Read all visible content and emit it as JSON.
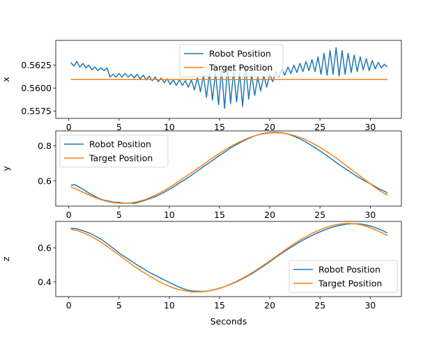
{
  "chart_data": [
    {
      "type": "line",
      "title": "",
      "xlabel": "",
      "ylabel": "x",
      "xlim": [
        -1.3,
        33.1
      ],
      "ylim": [
        0.5567,
        0.5652
      ],
      "xticks": [
        0,
        5,
        10,
        15,
        20,
        25,
        30
      ],
      "yticks": [
        0.5575,
        0.56,
        0.5625
      ],
      "ytick_labels": [
        "0.5575",
        "0.5600",
        "0.5625"
      ],
      "legend_position": "upper-center",
      "series": [
        {
          "name": "Robot Position",
          "color": "#1f77b4",
          "x": [
            0.2,
            0.5,
            0.8,
            1.1,
            1.4,
            1.7,
            2.0,
            2.3,
            2.6,
            2.9,
            3.2,
            3.5,
            3.8,
            4.1,
            4.4,
            4.7,
            5.0,
            5.3,
            5.6,
            5.9,
            6.2,
            6.5,
            6.8,
            7.1,
            7.4,
            7.7,
            8.0,
            8.3,
            8.6,
            8.9,
            9.2,
            9.5,
            9.8,
            10.1,
            10.4,
            10.7,
            11.0,
            11.3,
            11.6,
            11.9,
            12.2,
            12.5,
            12.8,
            13.1,
            13.4,
            13.7,
            14.0,
            14.3,
            14.6,
            14.9,
            15.2,
            15.5,
            15.8,
            16.1,
            16.4,
            16.7,
            17.0,
            17.3,
            17.6,
            17.9,
            18.2,
            18.5,
            18.8,
            19.1,
            19.4,
            19.7,
            20.0,
            20.3,
            20.6,
            20.9,
            21.2,
            21.5,
            21.8,
            22.1,
            22.4,
            22.7,
            23.0,
            23.3,
            23.6,
            23.9,
            24.2,
            24.5,
            24.8,
            25.1,
            25.4,
            25.7,
            26.0,
            26.3,
            26.6,
            26.9,
            27.2,
            27.5,
            27.8,
            28.1,
            28.4,
            28.7,
            29.0,
            29.3,
            29.6,
            29.9,
            30.2,
            30.5,
            30.8,
            31.1,
            31.4,
            31.7
          ],
          "values": [
            0.5628,
            0.5624,
            0.5629,
            0.5623,
            0.5627,
            0.5622,
            0.5625,
            0.562,
            0.5623,
            0.5619,
            0.5622,
            0.5619,
            0.5622,
            0.5612,
            0.5615,
            0.5612,
            0.5616,
            0.5612,
            0.5616,
            0.5612,
            0.5615,
            0.5611,
            0.5615,
            0.561,
            0.5614,
            0.5609,
            0.5613,
            0.5608,
            0.5612,
            0.5607,
            0.5611,
            0.5606,
            0.561,
            0.5604,
            0.5609,
            0.5603,
            0.5609,
            0.5603,
            0.5608,
            0.5601,
            0.5609,
            0.5598,
            0.5611,
            0.5596,
            0.5614,
            0.559,
            0.5616,
            0.5587,
            0.5618,
            0.5582,
            0.5621,
            0.5578,
            0.5623,
            0.5583,
            0.5619,
            0.5585,
            0.5617,
            0.558,
            0.5624,
            0.5588,
            0.5615,
            0.5592,
            0.5612,
            0.5597,
            0.5614,
            0.5601,
            0.5615,
            0.5607,
            0.5618,
            0.5612,
            0.5621,
            0.5614,
            0.5623,
            0.5616,
            0.5625,
            0.5617,
            0.5627,
            0.5618,
            0.5629,
            0.5619,
            0.5631,
            0.5618,
            0.5634,
            0.5615,
            0.5638,
            0.5614,
            0.5641,
            0.5615,
            0.5644,
            0.5613,
            0.5641,
            0.5615,
            0.5638,
            0.5617,
            0.5636,
            0.5618,
            0.5634,
            0.562,
            0.5632,
            0.5619,
            0.563,
            0.5621,
            0.5628,
            0.5622,
            0.5626,
            0.5623
          ]
        },
        {
          "name": "Target Position",
          "color": "#ff7f0e",
          "x": [
            0.2,
            31.7
          ],
          "values": [
            0.56093,
            0.56093
          ]
        }
      ]
    },
    {
      "type": "line",
      "title": "",
      "xlabel": "",
      "ylabel": "y",
      "xlim": [
        -1.3,
        33.1
      ],
      "ylim": [
        0.4565,
        0.8856
      ],
      "xticks": [
        0,
        5,
        10,
        15,
        20,
        25,
        30
      ],
      "yticks": [
        0.6,
        0.8
      ],
      "ytick_labels": [
        "0.6",
        "0.8"
      ],
      "legend_position": "upper-left",
      "series": [
        {
          "name": "Robot Position",
          "color": "#1f77b4",
          "x": [
            0.2,
            0.6,
            1.0,
            1.5,
            2.0,
            2.5,
            3.0,
            3.5,
            4.0,
            4.5,
            5.0,
            5.5,
            6.0,
            6.5,
            7.0,
            7.5,
            8.0,
            8.5,
            9.0,
            9.5,
            10.0,
            10.5,
            11.0,
            11.5,
            12.0,
            12.5,
            13.0,
            13.5,
            14.0,
            14.5,
            15.0,
            15.5,
            16.0,
            16.5,
            17.0,
            17.5,
            18.0,
            18.5,
            19.0,
            19.5,
            20.0,
            20.5,
            21.0,
            21.5,
            22.0,
            22.5,
            23.0,
            23.5,
            24.0,
            24.5,
            25.0,
            25.5,
            26.0,
            26.5,
            27.0,
            27.5,
            28.0,
            28.5,
            29.0,
            29.5,
            30.0,
            30.5,
            31.0,
            31.5,
            31.7
          ],
          "values": [
            0.575,
            0.579,
            0.566,
            0.55,
            0.531,
            0.515,
            0.5,
            0.49,
            0.485,
            0.479,
            0.478,
            0.472,
            0.475,
            0.472,
            0.479,
            0.488,
            0.498,
            0.508,
            0.521,
            0.536,
            0.552,
            0.569,
            0.588,
            0.605,
            0.625,
            0.645,
            0.665,
            0.686,
            0.705,
            0.725,
            0.746,
            0.764,
            0.785,
            0.802,
            0.817,
            0.832,
            0.845,
            0.857,
            0.866,
            0.872,
            0.876,
            0.877,
            0.876,
            0.872,
            0.864,
            0.853,
            0.84,
            0.825,
            0.808,
            0.79,
            0.771,
            0.752,
            0.731,
            0.71,
            0.69,
            0.67,
            0.652,
            0.633,
            0.615,
            0.599,
            0.584,
            0.568,
            0.551,
            0.539,
            0.53
          ]
        },
        {
          "name": "Target Position",
          "color": "#ff7f0e",
          "x": [
            0.2,
            0.6,
            1.0,
            1.5,
            2.0,
            2.5,
            3.0,
            3.5,
            4.0,
            4.5,
            5.0,
            5.5,
            6.0,
            6.5,
            7.0,
            7.5,
            8.0,
            8.5,
            9.0,
            9.5,
            10.0,
            10.5,
            11.0,
            11.5,
            12.0,
            12.5,
            13.0,
            13.5,
            14.0,
            14.5,
            15.0,
            15.5,
            16.0,
            16.5,
            17.0,
            17.5,
            18.0,
            18.5,
            19.0,
            19.5,
            20.0,
            20.5,
            21.0,
            21.5,
            22.0,
            22.5,
            23.0,
            23.5,
            24.0,
            24.5,
            25.0,
            25.5,
            26.0,
            26.5,
            27.0,
            27.5,
            28.0,
            28.5,
            29.0,
            29.5,
            30.0,
            30.5,
            31.0,
            31.5,
            31.7
          ],
          "values": [
            0.565,
            0.556,
            0.546,
            0.534,
            0.521,
            0.508,
            0.497,
            0.488,
            0.481,
            0.476,
            0.473,
            0.472,
            0.474,
            0.478,
            0.484,
            0.492,
            0.503,
            0.516,
            0.53,
            0.546,
            0.563,
            0.581,
            0.6,
            0.619,
            0.639,
            0.659,
            0.679,
            0.699,
            0.719,
            0.739,
            0.758,
            0.776,
            0.793,
            0.809,
            0.823,
            0.836,
            0.848,
            0.857,
            0.865,
            0.87,
            0.874,
            0.875,
            0.874,
            0.871,
            0.866,
            0.858,
            0.848,
            0.837,
            0.823,
            0.808,
            0.792,
            0.774,
            0.755,
            0.735,
            0.714,
            0.692,
            0.671,
            0.649,
            0.627,
            0.605,
            0.584,
            0.563,
            0.543,
            0.525,
            0.519
          ]
        }
      ]
    },
    {
      "type": "line",
      "title": "",
      "xlabel": "Seconds",
      "ylabel": "z",
      "xlim": [
        -1.3,
        33.1
      ],
      "ylim": [
        0.3134,
        0.7556
      ],
      "xticks": [
        0,
        5,
        10,
        15,
        20,
        25,
        30
      ],
      "yticks": [
        0.4,
        0.6
      ],
      "ytick_labels": [
        "0.4",
        "0.6"
      ],
      "legend_position": "lower-right",
      "series": [
        {
          "name": "Robot Position",
          "color": "#1f77b4",
          "x": [
            0.2,
            0.7,
            1.2,
            1.7,
            2.2,
            2.7,
            3.2,
            3.7,
            4.2,
            4.7,
            5.2,
            5.7,
            6.2,
            6.7,
            7.2,
            7.7,
            8.2,
            8.7,
            9.2,
            9.7,
            10.2,
            10.7,
            11.2,
            11.7,
            12.2,
            12.7,
            13.2,
            13.7,
            14.2,
            14.7,
            15.2,
            15.7,
            16.2,
            16.7,
            17.2,
            17.7,
            18.2,
            18.7,
            19.2,
            19.7,
            20.2,
            20.7,
            21.2,
            21.7,
            22.2,
            22.7,
            23.2,
            23.7,
            24.2,
            24.7,
            25.2,
            25.7,
            26.2,
            26.7,
            27.2,
            27.7,
            28.2,
            28.7,
            29.2,
            29.7,
            30.2,
            30.7,
            31.2,
            31.7
          ],
          "values": [
            0.715,
            0.713,
            0.705,
            0.695,
            0.683,
            0.668,
            0.651,
            0.63,
            0.608,
            0.585,
            0.562,
            0.542,
            0.523,
            0.503,
            0.486,
            0.467,
            0.45,
            0.436,
            0.42,
            0.406,
            0.391,
            0.377,
            0.364,
            0.354,
            0.347,
            0.345,
            0.344,
            0.345,
            0.351,
            0.358,
            0.366,
            0.377,
            0.388,
            0.401,
            0.416,
            0.431,
            0.448,
            0.467,
            0.486,
            0.506,
            0.527,
            0.549,
            0.569,
            0.588,
            0.607,
            0.625,
            0.642,
            0.658,
            0.673,
            0.687,
            0.699,
            0.711,
            0.721,
            0.729,
            0.735,
            0.74,
            0.742,
            0.742,
            0.739,
            0.733,
            0.725,
            0.715,
            0.703,
            0.687
          ]
        },
        {
          "name": "Target Position",
          "color": "#ff7f0e",
          "x": [
            0.2,
            0.7,
            1.2,
            1.7,
            2.2,
            2.7,
            3.2,
            3.7,
            4.2,
            4.7,
            5.2,
            5.7,
            6.2,
            6.7,
            7.2,
            7.7,
            8.2,
            8.7,
            9.2,
            9.7,
            10.2,
            10.7,
            11.2,
            11.7,
            12.2,
            12.7,
            13.2,
            13.7,
            14.2,
            14.7,
            15.2,
            15.7,
            16.2,
            16.7,
            17.2,
            17.7,
            18.2,
            18.7,
            19.2,
            19.7,
            20.2,
            20.7,
            21.2,
            21.7,
            22.2,
            22.7,
            23.2,
            23.7,
            24.2,
            24.7,
            25.2,
            25.7,
            26.2,
            26.7,
            27.2,
            27.7,
            28.2,
            28.7,
            29.2,
            29.7,
            30.2,
            30.7,
            31.2,
            31.7
          ],
          "values": [
            0.709,
            0.704,
            0.694,
            0.682,
            0.668,
            0.652,
            0.634,
            0.614,
            0.593,
            0.571,
            0.549,
            0.527,
            0.505,
            0.484,
            0.464,
            0.446,
            0.428,
            0.411,
            0.395,
            0.381,
            0.369,
            0.359,
            0.351,
            0.346,
            0.342,
            0.341,
            0.342,
            0.345,
            0.35,
            0.357,
            0.366,
            0.377,
            0.39,
            0.404,
            0.419,
            0.435,
            0.453,
            0.471,
            0.491,
            0.511,
            0.532,
            0.553,
            0.574,
            0.595,
            0.615,
            0.634,
            0.652,
            0.669,
            0.685,
            0.699,
            0.711,
            0.722,
            0.731,
            0.737,
            0.742,
            0.744,
            0.743,
            0.74,
            0.734,
            0.725,
            0.714,
            0.701,
            0.688,
            0.673
          ]
        }
      ]
    }
  ]
}
